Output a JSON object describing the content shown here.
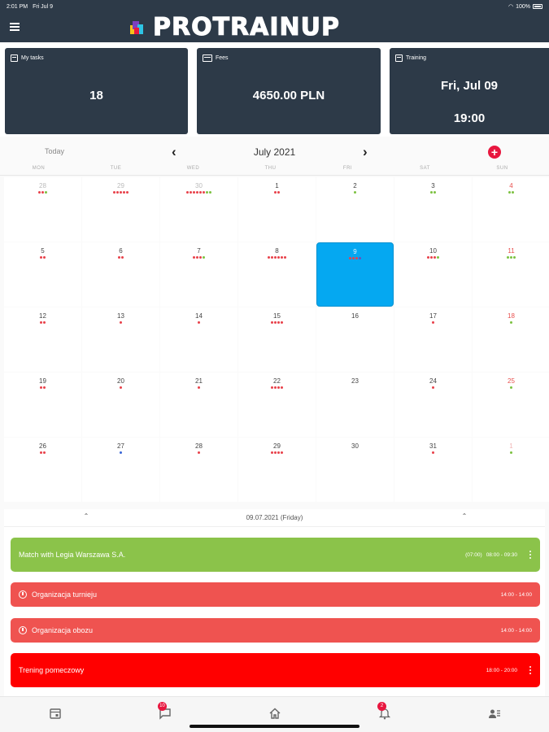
{
  "status": {
    "time": "2:01 PM",
    "date": "Fri Jul 9",
    "battery": "100%"
  },
  "header": {
    "logo_text": "PROTRAINUP"
  },
  "cards": [
    {
      "label": "My tasks",
      "value": "18"
    },
    {
      "label": "Fees",
      "value": "4650.00 PLN"
    },
    {
      "label": "Training",
      "date": "Fri, Jul 09",
      "time": "19:00"
    }
  ],
  "calendar": {
    "today_label": "Today",
    "month_label": "July 2021",
    "weekdays": [
      "MON",
      "TUE",
      "WED",
      "THU",
      "FRI",
      "SAT",
      "SUN"
    ],
    "colors": {
      "r": "#e8414a",
      "g": "#7cc241",
      "p": "#6c4cbd",
      "b": "#3a66d6"
    },
    "weeks": [
      [
        {
          "n": "28",
          "other": true,
          "dots": "rrg"
        },
        {
          "n": "29",
          "other": true,
          "dots": "rrrrr"
        },
        {
          "n": "30",
          "other": true,
          "dots": "rrrrrrgg"
        },
        {
          "n": "1",
          "dots": "rr"
        },
        {
          "n": "2",
          "dots": "g"
        },
        {
          "n": "3",
          "dots": "gg"
        },
        {
          "n": "4",
          "dots": "gg"
        }
      ],
      [
        {
          "n": "5",
          "dots": "rr"
        },
        {
          "n": "6",
          "dots": "rr"
        },
        {
          "n": "7",
          "dots": "rrrg"
        },
        {
          "n": "8",
          "dots": "rrrrrr"
        },
        {
          "n": "9",
          "selected": true,
          "dots": "rrrp"
        },
        {
          "n": "10",
          "dots": "rrrg"
        },
        {
          "n": "11",
          "dots": "ggg"
        }
      ],
      [
        {
          "n": "12",
          "dots": "rr"
        },
        {
          "n": "13",
          "dots": "r"
        },
        {
          "n": "14",
          "dots": "r"
        },
        {
          "n": "15",
          "dots": "rrrr"
        },
        {
          "n": "16",
          "dots": ""
        },
        {
          "n": "17",
          "dots": "r"
        },
        {
          "n": "18",
          "dots": "g"
        }
      ],
      [
        {
          "n": "19",
          "dots": "rr"
        },
        {
          "n": "20",
          "dots": "r"
        },
        {
          "n": "21",
          "dots": "r"
        },
        {
          "n": "22",
          "dots": "rrrr"
        },
        {
          "n": "23",
          "dots": ""
        },
        {
          "n": "24",
          "dots": "r"
        },
        {
          "n": "25",
          "dots": "g"
        }
      ],
      [
        {
          "n": "26",
          "dots": "rr"
        },
        {
          "n": "27",
          "dots": "b"
        },
        {
          "n": "28",
          "dots": "r"
        },
        {
          "n": "29",
          "dots": "rrrr"
        },
        {
          "n": "30",
          "dots": ""
        },
        {
          "n": "31",
          "dots": "r"
        },
        {
          "n": "1",
          "other": true,
          "dots": "g"
        }
      ]
    ]
  },
  "day_panel": {
    "date_label": "09.07.2021 (Friday)",
    "events": [
      {
        "title": "Match with Legia Warszawa S.A.",
        "time_prefix": "(07:00)",
        "time": "08:00 - 09:30",
        "color": "#8bc34a",
        "icon": "",
        "menu": true
      },
      {
        "title": "Organizacja turnieju",
        "time_prefix": "",
        "time": "14:00 - 14:00",
        "color": "#ef5350",
        "icon": "alarm-icon",
        "menu": false
      },
      {
        "title": "Organizacja obozu",
        "time_prefix": "",
        "time": "14:00 - 14:00",
        "color": "#ef5350",
        "icon": "alarm-icon",
        "menu": false
      },
      {
        "title": "Trening pomeczowy",
        "time_prefix": "",
        "time": "18:00 - 20:00",
        "color": "#ff0000",
        "icon": "",
        "menu": true
      }
    ]
  },
  "bottom_nav": {
    "tabs": [
      {
        "name": "calendar-icon",
        "badge": ""
      },
      {
        "name": "chat-icon",
        "badge": "10"
      },
      {
        "name": "home-icon",
        "badge": ""
      },
      {
        "name": "bell-icon",
        "badge": "2"
      },
      {
        "name": "contacts-icon",
        "badge": ""
      }
    ]
  }
}
